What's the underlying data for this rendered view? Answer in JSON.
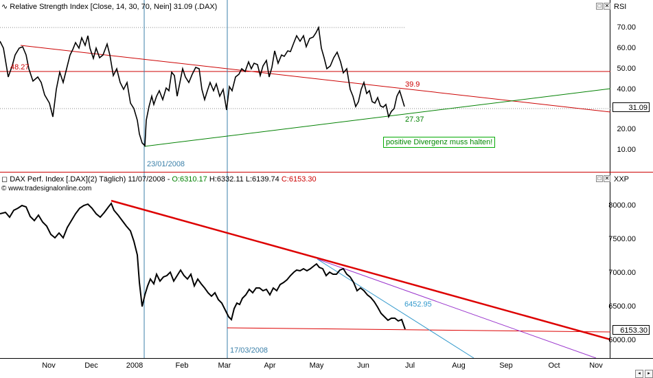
{
  "rsi_pane": {
    "header": "Relative Strength Index [Close, 14, 30, 70, Nein] 31.09 (.DAX)",
    "axis_title": "RSI",
    "ticks": [
      "70.00",
      "60.00",
      "50.00",
      "40.00",
      "30.00",
      "20.00",
      "10.00"
    ],
    "current_value": "31.09",
    "annotations": {
      "level_left": "48.27",
      "trend_value": "39.9",
      "support_value": "27.37",
      "date": "23/01/2008",
      "note": "positive Divergenz muss halten!"
    },
    "colors": {
      "resistance": "#cc0000",
      "support": "#008000",
      "line": "#000000",
      "vline": "#3a7fa8"
    }
  },
  "dax_pane": {
    "header_prefix": "DAX Perf. Index [.DAX](2)  Täglich) 11/07/2008 - ",
    "open": "O:6310.17",
    "high_low": " H:6332.11 L:6139.74 ",
    "close": "C:6153.30",
    "source": "www.tradesignalonline.com",
    "axis_title": "XXP",
    "ticks": [
      "8000.00",
      "7500.00",
      "7000.00",
      "6500.00",
      "6000.00"
    ],
    "current_value": "6153.30",
    "annotations": {
      "target": "6452.95",
      "date": "17/03/2008"
    },
    "colors": {
      "resistance": "#dd0000",
      "support": "#dd0000",
      "purple": "#9933cc",
      "blue": "#3399cc",
      "open": "#008000",
      "close": "#cc0000"
    }
  },
  "time_axis": {
    "months": [
      "Nov",
      "Dec",
      "2008",
      "Feb",
      "Mar",
      "Apr",
      "May",
      "Jun",
      "Jul",
      "Aug",
      "Sep",
      "Oct",
      "Nov"
    ]
  },
  "icons": [
    "minimize-icon",
    "close-icon",
    "indicator-icon",
    "chart-icon"
  ]
}
